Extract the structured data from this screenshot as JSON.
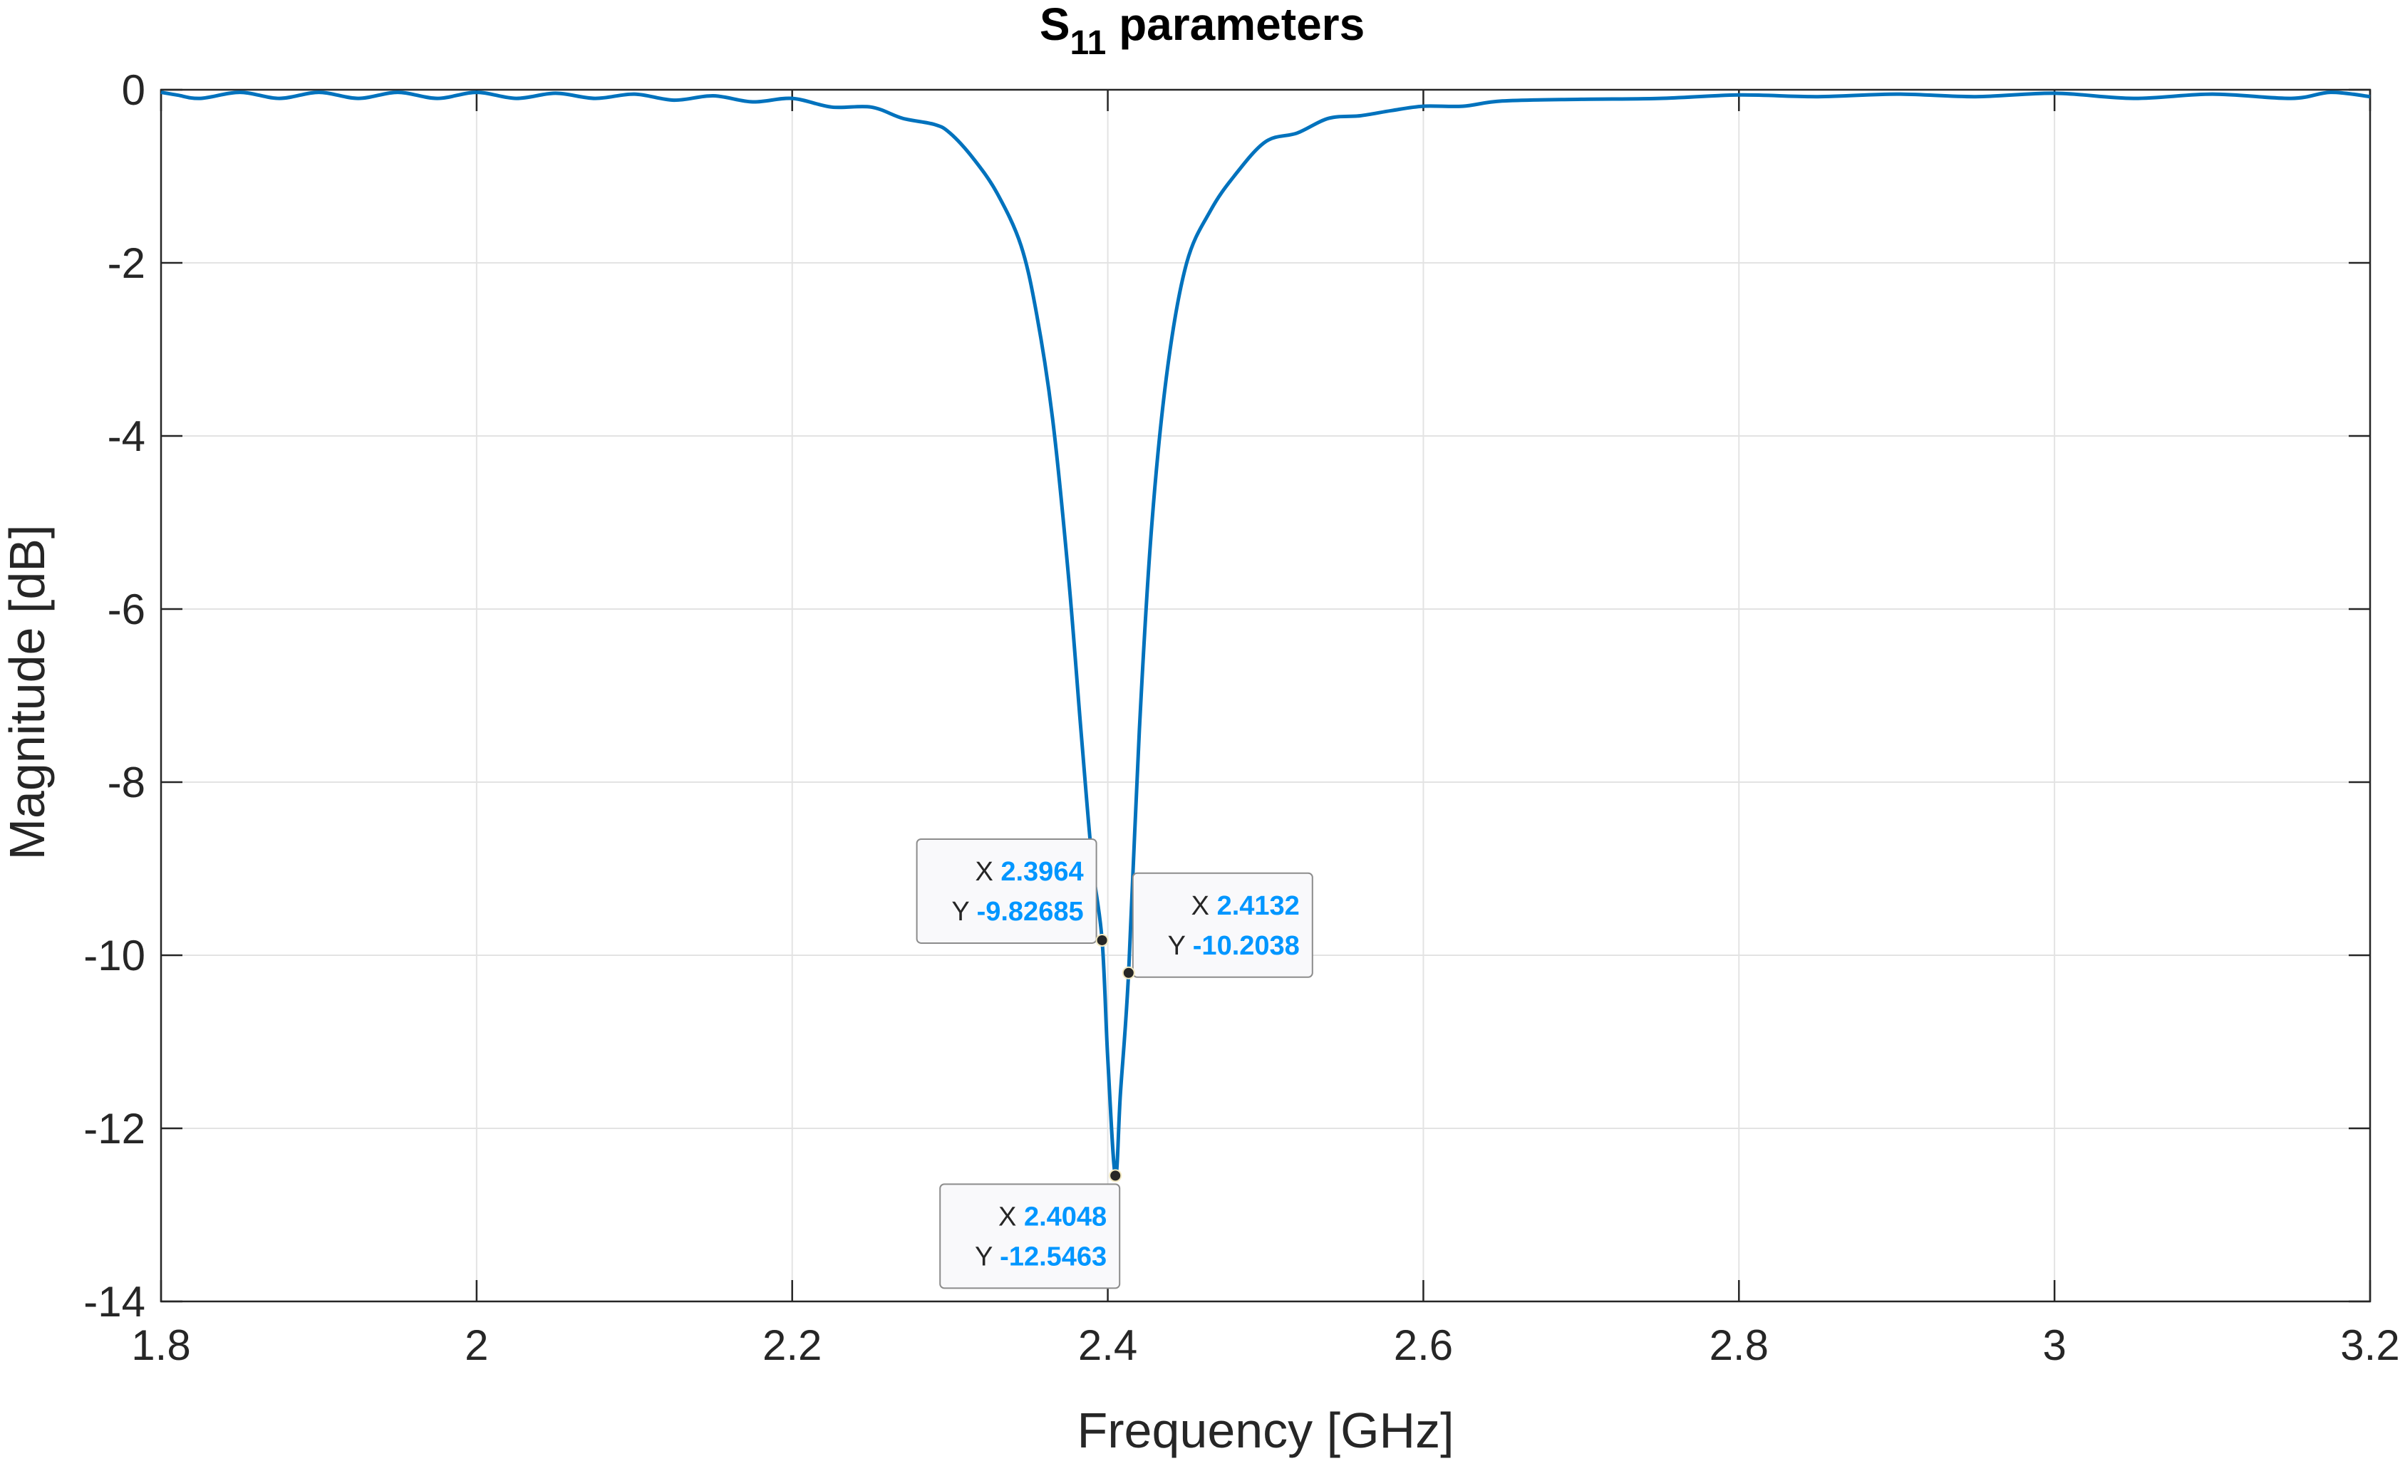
{
  "chart_data": {
    "type": "line",
    "title_main": "S",
    "title_sub": "11",
    "title_rest": " parameters",
    "xlabel": "Frequency [GHz]",
    "ylabel": "Magnitude [dB]",
    "xlim": [
      1.8,
      3.2
    ],
    "ylim": [
      -14,
      0
    ],
    "xticks": [
      1.8,
      2.0,
      2.2,
      2.4,
      2.6,
      2.8,
      3.0,
      3.2
    ],
    "xtick_labels": [
      "1.8",
      "2",
      "2.2",
      "2.4",
      "2.6",
      "2.8",
      "3",
      "3.2"
    ],
    "yticks": [
      0,
      -2,
      -4,
      -6,
      -8,
      -10,
      -12,
      -14
    ],
    "ytick_labels": [
      "0",
      "-2",
      "-4",
      "-6",
      "-8",
      "-10",
      "-12",
      "-14"
    ],
    "grid": true,
    "series_color": "#0072BD",
    "datatip_color": "#0096FF",
    "series": [
      {
        "x": [
          1.8,
          1.81,
          1.825,
          1.85,
          1.875,
          1.9,
          1.925,
          1.95,
          1.975,
          2.0,
          2.025,
          2.05,
          2.075,
          2.1,
          2.125,
          2.15,
          2.175,
          2.2,
          2.225,
          2.25,
          2.27,
          2.29,
          2.3,
          2.315,
          2.33,
          2.345,
          2.355,
          2.365,
          2.375,
          2.383,
          2.39,
          2.3964,
          2.4,
          2.4048,
          2.408,
          2.4132,
          2.42,
          2.428,
          2.438,
          2.45,
          2.465,
          2.48,
          2.5,
          2.52,
          2.54,
          2.56,
          2.58,
          2.6,
          2.625,
          2.65,
          2.7,
          2.75,
          2.8,
          2.85,
          2.9,
          2.95,
          3.0,
          3.05,
          3.1,
          3.15,
          3.175,
          3.2
        ],
        "y": [
          -0.03,
          -0.06,
          -0.1,
          -0.03,
          -0.1,
          -0.03,
          -0.1,
          -0.03,
          -0.1,
          -0.03,
          -0.1,
          -0.04,
          -0.1,
          -0.05,
          -0.12,
          -0.07,
          -0.14,
          -0.1,
          -0.2,
          -0.2,
          -0.33,
          -0.4,
          -0.5,
          -0.8,
          -1.2,
          -1.8,
          -2.6,
          -3.8,
          -5.6,
          -7.4,
          -8.9,
          -9.82685,
          -11.2,
          -12.5463,
          -11.6,
          -10.2038,
          -7.4,
          -5.0,
          -3.2,
          -2.0,
          -1.4,
          -1.0,
          -0.6,
          -0.5,
          -0.33,
          -0.3,
          -0.24,
          -0.19,
          -0.19,
          -0.13,
          -0.11,
          -0.1,
          -0.06,
          -0.08,
          -0.05,
          -0.08,
          -0.04,
          -0.1,
          -0.05,
          -0.1,
          -0.03,
          -0.08
        ]
      }
    ],
    "datatips": [
      {
        "x": 2.3964,
        "y": -9.82685,
        "x_label": "X",
        "y_label": "Y",
        "x_text": "2.3964",
        "y_text": "-9.82685",
        "placement": "upper-left"
      },
      {
        "x": 2.4132,
        "y": -10.2038,
        "x_label": "X",
        "y_label": "Y",
        "x_text": "2.4132",
        "y_text": "-10.2038",
        "placement": "upper-right"
      },
      {
        "x": 2.4048,
        "y": -12.5463,
        "x_label": "X",
        "y_label": "Y",
        "x_text": "2.4048",
        "y_text": "-12.5463",
        "placement": "lower-left"
      }
    ]
  }
}
